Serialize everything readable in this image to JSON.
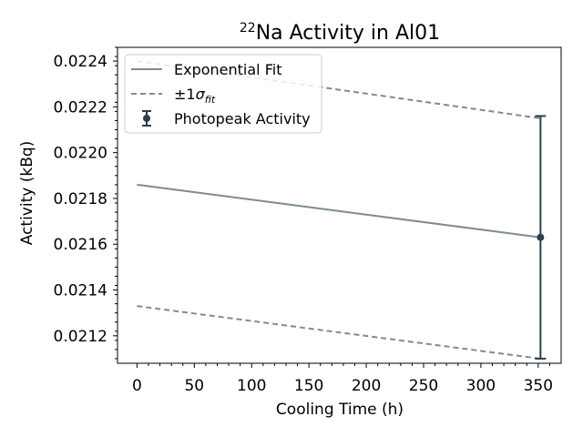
{
  "chart_data": {
    "type": "line",
    "title_sup": "22",
    "title_main": "Na Activity in Al01",
    "xlabel": "Cooling Time (h)",
    "ylabel": "Activity (kBq)",
    "xlim": [
      -17,
      370
    ],
    "ylim": [
      0.02108,
      0.02246
    ],
    "xticks": [
      0,
      50,
      100,
      150,
      200,
      250,
      300,
      350
    ],
    "yticks": [
      0.0212,
      0.0214,
      0.0216,
      0.0218,
      0.022,
      0.0222,
      0.0224
    ],
    "ytick_labels": [
      "0.0212",
      "0.0214",
      "0.0216",
      "0.0218",
      "0.0220",
      "0.0222",
      "0.0224"
    ],
    "legend_position": "upper-left",
    "series": [
      {
        "name": "Exponential Fit",
        "style": "solid",
        "color": "#7f8c8d",
        "x": [
          0,
          352
        ],
        "y": [
          0.02186,
          0.02163
        ]
      },
      {
        "name": "±1σfit",
        "style": "dashed",
        "color": "#7f8c8d",
        "x": [
          0,
          352
        ],
        "y": [
          0.0224,
          0.02215
        ]
      },
      {
        "name": "±1σfit",
        "style": "dashed",
        "color": "#7f8c8d",
        "x": [
          0,
          352
        ],
        "y": [
          0.02133,
          0.0211
        ]
      }
    ],
    "points": {
      "name": "Photopeak Activity",
      "color": "#2c3e50",
      "x": [
        352
      ],
      "y": [
        0.02163
      ],
      "yerr_low": [
        0.0211
      ],
      "yerr_high": [
        0.02216
      ]
    }
  },
  "legend": {
    "fit_label": "Exponential Fit",
    "sigma_prefix": "±1",
    "sigma_symbol": "σ",
    "sigma_sub": "fit",
    "points_label": "Photopeak Activity"
  }
}
